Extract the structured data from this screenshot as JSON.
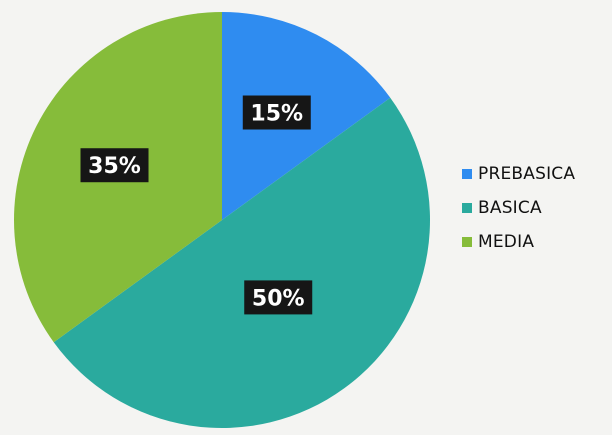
{
  "chart_data": {
    "type": "pie",
    "categories": [
      "PREBASICA",
      "BASICA",
      "MEDIA"
    ],
    "values": [
      15,
      50,
      35
    ],
    "data_labels": [
      "15%",
      "50%",
      "35%"
    ],
    "colors": [
      "#2f8cf0",
      "#2aaa9e",
      "#86bc3a"
    ],
    "start_angle_deg": 0,
    "direction": "clockwise",
    "legend_placement": "right",
    "title": ""
  }
}
